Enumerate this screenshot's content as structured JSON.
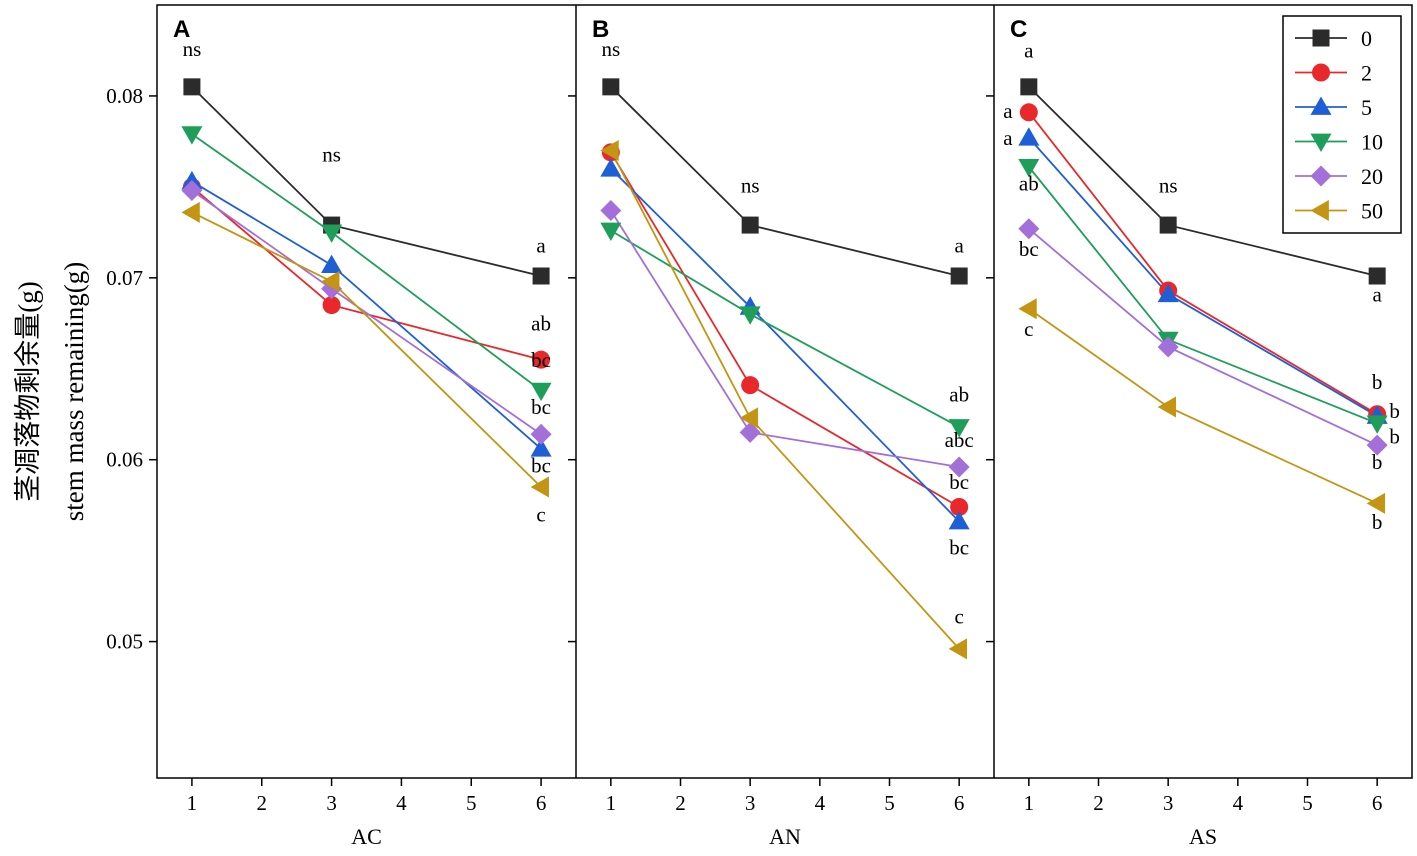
{
  "chart_data": {
    "type": "line",
    "y_axis_label_cn": "茎凋落物剩余量(g)",
    "y_axis_label_en": "stem mass remaining(g)",
    "ylim": [
      0.0425,
      0.085
    ],
    "yticks": [
      0.05,
      0.06,
      0.07,
      0.08
    ],
    "ytick_labels": [
      "0.05",
      "0.06",
      "0.07",
      "0.08"
    ],
    "xlim": [
      0.5,
      6.5
    ],
    "xticks": [
      1,
      2,
      3,
      4,
      5,
      6
    ],
    "xtick_labels": [
      "1",
      "2",
      "3",
      "4",
      "5",
      "6"
    ],
    "x": [
      1,
      3,
      6
    ],
    "legend": {
      "position": "top-right",
      "entries": [
        "0",
        "2",
        "5",
        "10",
        "20",
        "50"
      ]
    },
    "series_styles": [
      {
        "name": "0",
        "color": "#2b2b2b",
        "marker": "square"
      },
      {
        "name": "2",
        "color": "#e8282b",
        "marker": "circle"
      },
      {
        "name": "5",
        "color": "#1f5fd6",
        "marker": "triangle-up"
      },
      {
        "name": "10",
        "color": "#1f9e5a",
        "marker": "triangle-down"
      },
      {
        "name": "20",
        "color": "#a36fd9",
        "marker": "diamond"
      },
      {
        "name": "50",
        "color": "#c49512",
        "marker": "triangle-left"
      }
    ],
    "panels": [
      {
        "letter": "A",
        "xlabel": "AC",
        "series": [
          {
            "name": "0",
            "values": [
              0.0805,
              0.0729,
              0.0701
            ]
          },
          {
            "name": "2",
            "values": [
              0.075,
              0.0685,
              0.0655
            ]
          },
          {
            "name": "5",
            "values": [
              0.0753,
              0.0707,
              0.0606
            ]
          },
          {
            "name": "10",
            "values": [
              0.0779,
              0.0725,
              0.0638
            ]
          },
          {
            "name": "20",
            "values": [
              0.0748,
              0.0694,
              0.0614
            ]
          },
          {
            "name": "50",
            "values": [
              0.0736,
              0.0698,
              0.0585
            ]
          }
        ],
        "annotations": [
          {
            "x": 1,
            "y": 0.0822,
            "text": "ns"
          },
          {
            "x": 3,
            "y": 0.0764,
            "text": "ns"
          },
          {
            "x": 6,
            "y": 0.0714,
            "text": "a"
          },
          {
            "x": 6,
            "y": 0.0671,
            "text": "ab"
          },
          {
            "x": 6,
            "y": 0.0651,
            "text": "bc"
          },
          {
            "x": 6,
            "y": 0.0625,
            "text": "bc"
          },
          {
            "x": 6,
            "y": 0.0593,
            "text": "bc"
          },
          {
            "x": 6,
            "y": 0.0566,
            "text": "c"
          }
        ]
      },
      {
        "letter": "B",
        "xlabel": "AN",
        "series": [
          {
            "name": "0",
            "values": [
              0.0805,
              0.0729,
              0.0701
            ]
          },
          {
            "name": "2",
            "values": [
              0.0769,
              0.0641,
              0.0574
            ]
          },
          {
            "name": "5",
            "values": [
              0.076,
              0.0684,
              0.0566
            ]
          },
          {
            "name": "10",
            "values": [
              0.0726,
              0.068,
              0.0618
            ]
          },
          {
            "name": "20",
            "values": [
              0.0737,
              0.0615,
              0.0596
            ]
          },
          {
            "name": "50",
            "values": [
              0.077,
              0.0623,
              0.0496
            ]
          }
        ],
        "annotations": [
          {
            "x": 1,
            "y": 0.0822,
            "text": "ns"
          },
          {
            "x": 3,
            "y": 0.0747,
            "text": "ns"
          },
          {
            "x": 6,
            "y": 0.0714,
            "text": "a"
          },
          {
            "x": 6,
            "y": 0.0632,
            "text": "ab"
          },
          {
            "x": 6,
            "y": 0.0607,
            "text": "abc"
          },
          {
            "x": 6,
            "y": 0.0584,
            "text": "bc"
          },
          {
            "x": 6,
            "y": 0.0548,
            "text": "bc"
          },
          {
            "x": 6,
            "y": 0.051,
            "text": "c"
          }
        ]
      },
      {
        "letter": "C",
        "xlabel": "AS",
        "series": [
          {
            "name": "0",
            "values": [
              0.0805,
              0.0729,
              0.0701
            ]
          },
          {
            "name": "2",
            "values": [
              0.0791,
              0.0693,
              0.0625
            ]
          },
          {
            "name": "5",
            "values": [
              0.0777,
              0.0691,
              0.0624
            ]
          },
          {
            "name": "10",
            "values": [
              0.0761,
              0.0666,
              0.062
            ]
          },
          {
            "name": "20",
            "values": [
              0.0727,
              0.0662,
              0.0608
            ]
          },
          {
            "name": "50",
            "values": [
              0.0683,
              0.0629,
              0.0576
            ]
          }
        ],
        "annotations": [
          {
            "x": 1,
            "y": 0.0821,
            "text": "a"
          },
          {
            "x": 0.7,
            "y": 0.0788,
            "text": "a"
          },
          {
            "x": 0.7,
            "y": 0.0773,
            "text": "a"
          },
          {
            "x": 1,
            "y": 0.0748,
            "text": "ab"
          },
          {
            "x": 1,
            "y": 0.0712,
            "text": "bc"
          },
          {
            "x": 1,
            "y": 0.0668,
            "text": "c"
          },
          {
            "x": 3,
            "y": 0.0747,
            "text": "ns"
          },
          {
            "x": 6,
            "y": 0.0687,
            "text": "a"
          },
          {
            "x": 6,
            "y": 0.0639,
            "text": "b"
          },
          {
            "x": 6.25,
            "y": 0.0623,
            "text": "b"
          },
          {
            "x": 6.25,
            "y": 0.0609,
            "text": "b"
          },
          {
            "x": 6,
            "y": 0.0595,
            "text": "b"
          },
          {
            "x": 6,
            "y": 0.0562,
            "text": "b"
          }
        ]
      }
    ]
  }
}
